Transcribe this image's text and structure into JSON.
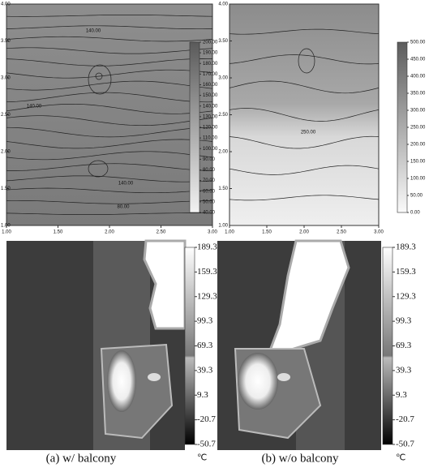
{
  "chart_data": [
    {
      "type": "contour",
      "xlim": [
        1,
        3
      ],
      "ylim": [
        1,
        4
      ],
      "xticks": [
        {
          "value": 1,
          "label": "1.00"
        },
        {
          "value": 1.5,
          "label": "1.50"
        },
        {
          "value": 2,
          "label": "2.00"
        },
        {
          "value": 2.5,
          "label": "2.50"
        },
        {
          "value": 3,
          "label": "3.00"
        }
      ],
      "yticks": [
        {
          "value": 1,
          "label": "1.00"
        },
        {
          "value": 1.5,
          "label": "1.50"
        },
        {
          "value": 2,
          "label": "2.00"
        },
        {
          "value": 2.5,
          "label": "2.50"
        },
        {
          "value": 3,
          "label": "3.00"
        },
        {
          "value": 3.5,
          "label": "3.50"
        },
        {
          "value": 4,
          "label": "4.00"
        }
      ],
      "clim": [
        40,
        200
      ],
      "cticks": [
        {
          "value": 40,
          "label": "40.00"
        },
        {
          "value": 50,
          "label": "50.00"
        },
        {
          "value": 60,
          "label": "60.00"
        },
        {
          "value": 70,
          "label": "70.00"
        },
        {
          "value": 80,
          "label": "80.00"
        },
        {
          "value": 90,
          "label": "90.00"
        },
        {
          "value": 100,
          "label": "100.00"
        },
        {
          "value": 110,
          "label": "110.00"
        },
        {
          "value": 120,
          "label": "120.00"
        },
        {
          "value": 130,
          "label": "130.00"
        },
        {
          "value": 140,
          "label": "140.00"
        },
        {
          "value": 150,
          "label": "150.00"
        },
        {
          "value": 160,
          "label": "160.00"
        },
        {
          "value": 170,
          "label": "170.00"
        },
        {
          "value": 180,
          "label": "180.00"
        },
        {
          "value": 190,
          "label": "190.00"
        },
        {
          "value": 200,
          "label": "200.00"
        }
      ],
      "annotations": [
        "140.00",
        "140.00",
        "140.00",
        "80.00"
      ]
    },
    {
      "type": "contour",
      "xlim": [
        1,
        3
      ],
      "ylim": [
        1,
        4
      ],
      "xticks": [
        {
          "value": 1,
          "label": "1.00"
        },
        {
          "value": 1.5,
          "label": "1.50"
        },
        {
          "value": 2,
          "label": "2.00"
        },
        {
          "value": 2.5,
          "label": "2.50"
        },
        {
          "value": 3,
          "label": "3.00"
        }
      ],
      "yticks": [
        {
          "value": 1,
          "label": "1.00"
        },
        {
          "value": 1.5,
          "label": "1.50"
        },
        {
          "value": 2,
          "label": "2.00"
        },
        {
          "value": 2.5,
          "label": "2.50"
        },
        {
          "value": 3,
          "label": "3.00"
        },
        {
          "value": 3.5,
          "label": "3.50"
        },
        {
          "value": 4,
          "label": "4.00"
        }
      ],
      "clim": [
        0,
        500
      ],
      "cticks": [
        {
          "value": 0,
          "label": "0.00"
        },
        {
          "value": 50,
          "label": "50.00"
        },
        {
          "value": 100,
          "label": "100.00"
        },
        {
          "value": 150,
          "label": "150.00"
        },
        {
          "value": 200,
          "label": "200.00"
        },
        {
          "value": 250,
          "label": "250.00"
        },
        {
          "value": 300,
          "label": "300.00"
        },
        {
          "value": 350,
          "label": "350.00"
        },
        {
          "value": 400,
          "label": "400.00"
        },
        {
          "value": 450,
          "label": "450.00"
        },
        {
          "value": 500,
          "label": "500.00"
        }
      ],
      "annotations": [
        "250.00"
      ]
    },
    {
      "type": "thermal",
      "clim": [
        -50.7,
        189.3
      ],
      "cticks": [
        189.3,
        159.3,
        129.3,
        99.3,
        69.3,
        39.3,
        9.3,
        -20.7,
        -50.7
      ],
      "unit": "℃",
      "caption": "(a)  w/  balcony"
    },
    {
      "type": "thermal",
      "clim": [
        -50.7,
        189.3
      ],
      "cticks": [
        189.3,
        159.3,
        129.3,
        99.3,
        69.3,
        39.3,
        9.3,
        -20.7,
        -50.7
      ],
      "unit": "℃",
      "caption": "(b) w/o  balcony"
    }
  ]
}
